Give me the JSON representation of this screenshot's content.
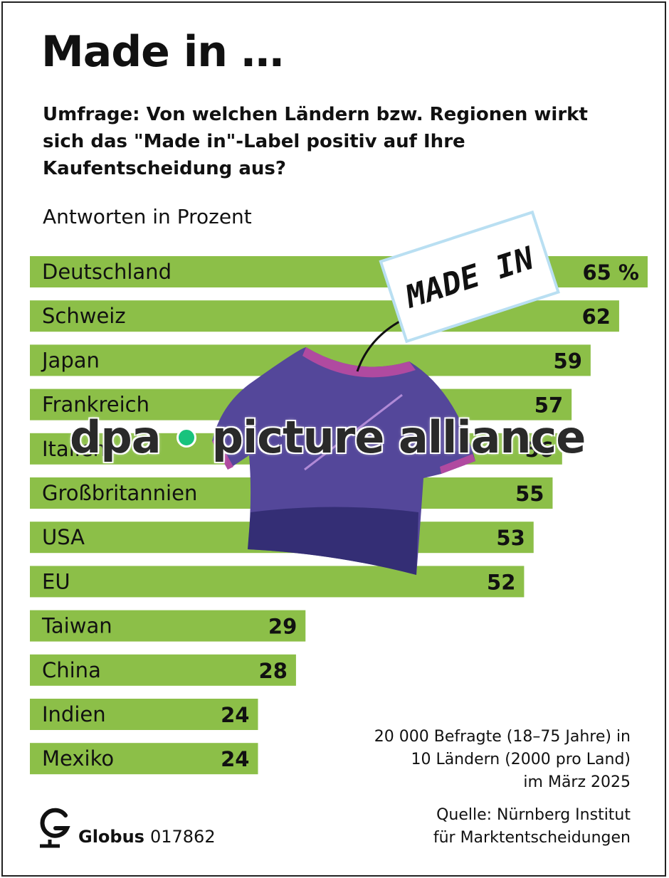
{
  "header": {
    "title": "Made in …",
    "question": "Umfrage: Von welchen Ländern bzw. Regionen wirkt sich das \"Made in\"-Label positiv auf Ihre Kaufentscheidung aus?",
    "unit_label": "Antworten in Prozent"
  },
  "colors": {
    "bar": "#8cbf48",
    "text": "#111111",
    "shirt": "#54479a",
    "shirt_dark": "#2f2a6e",
    "collar": "#b04aa0",
    "tag_border": "#b9dff2",
    "watermark_dot": "#19c37d"
  },
  "chart_data": {
    "type": "bar",
    "orientation": "horizontal",
    "title": "Made in …",
    "xlabel": "Antworten in Prozent",
    "ylabel": "",
    "xlim": [
      0,
      65
    ],
    "value_suffix_first": " %",
    "categories": [
      "Deutschland",
      "Schweiz",
      "Japan",
      "Frankreich",
      "Italien",
      "Großbritannien",
      "USA",
      "EU",
      "Taiwan",
      "China",
      "Indien",
      "Mexiko"
    ],
    "values": [
      65,
      62,
      59,
      57,
      56,
      55,
      53,
      52,
      29,
      28,
      24,
      24
    ]
  },
  "illustration": {
    "tag_text": "MADE IN",
    "shirt_icon": "t-shirt-icon"
  },
  "watermark": {
    "left_text": "dpa",
    "right_text": "picture alliance"
  },
  "footer": {
    "brand_name": "Globus",
    "brand_code": "017862",
    "brand_icon": "globus-logo-icon",
    "survey_note": [
      "20 000 Befragte (18–75 Jahre) in",
      "10 Ländern (2000 pro Land)",
      "im März 2025"
    ],
    "source_note": [
      "Quelle: Nürnberg Institut",
      "für Marktentscheidungen"
    ]
  }
}
